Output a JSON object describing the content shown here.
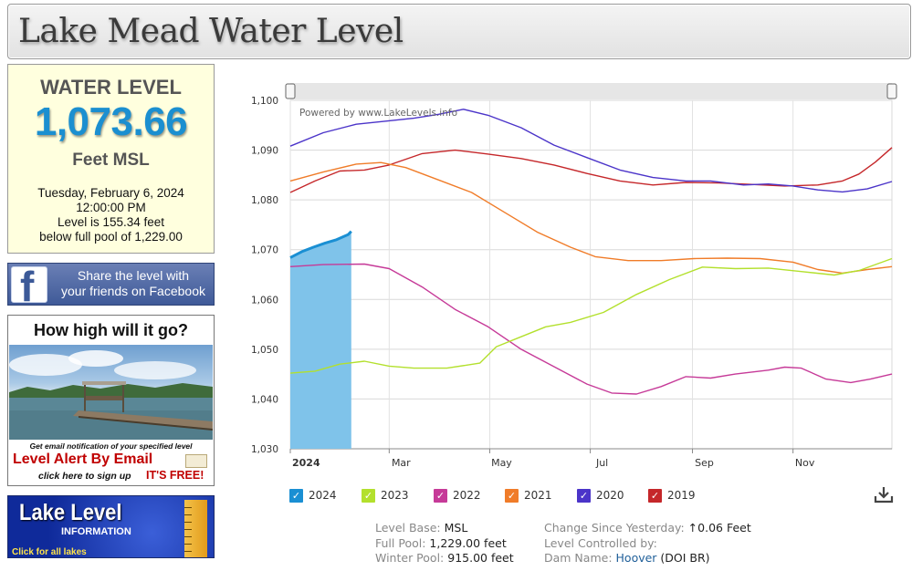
{
  "header": {
    "title": "Lake Mead Water Level"
  },
  "level_box": {
    "label": "WATER LEVEL",
    "value": "1,073.66",
    "unit": "Feet MSL",
    "date": "Tuesday, February 6, 2024",
    "time": "12:00:00 PM",
    "level_line": "Level is 155.34 feet",
    "below_line": "below full pool of 1,229.00"
  },
  "facebook_banner": {
    "line1": "Share the level with",
    "line2": "your friends on Facebook",
    "logo": "f"
  },
  "alert_banner": {
    "question": "How high will it go?",
    "small_text": "Get email notification of your specified level",
    "big_text": "Level Alert By Email",
    "signup_text": "click here to sign up",
    "free_text": "IT'S FREE!"
  },
  "lake_level_banner": {
    "title": "Lake Level",
    "subtitle": "INFORMATION",
    "link": "Click for all lakes"
  },
  "stats": {
    "level_base_label": "Level Base:",
    "level_base_value": "MSL",
    "full_pool_label": "Full Pool:",
    "full_pool_value": "1,229.00 feet",
    "winter_pool_label": "Winter Pool:",
    "winter_pool_value": "915.00 feet",
    "change_label": "Change Since Yesterday:",
    "change_arrow": "↑",
    "change_value": "0.06 Feet",
    "controlled_label": "Level Controlled by:",
    "dam_label": "Dam Name:",
    "dam_link": "Hoover",
    "dam_suffix": "(DOI BR)"
  },
  "chart_data": {
    "type": "line",
    "watermark": "Powered by www.LakeLevels.info",
    "x_tick_labels": [
      "2024",
      "Mar",
      "May",
      "Jul",
      "Sep",
      "Nov"
    ],
    "x_tick_days": [
      0,
      60,
      121,
      182,
      244,
      305
    ],
    "xlim_days": [
      0,
      365
    ],
    "ylim": [
      1030,
      1100
    ],
    "y_ticks": [
      1030,
      1040,
      1050,
      1060,
      1070,
      1080,
      1090,
      1100
    ],
    "y_tick_labels": [
      "1,030",
      "1,040",
      "1,050",
      "1,060",
      "1,070",
      "1,080",
      "1,090",
      "1,100"
    ],
    "grid": true,
    "legend_position": "bottom",
    "series": [
      {
        "name": "2024",
        "color": "#1a8fd3",
        "area": true,
        "points": [
          [
            0,
            1068.4
          ],
          [
            7,
            1069.6
          ],
          [
            14,
            1070.5
          ],
          [
            21,
            1071.3
          ],
          [
            28,
            1072.0
          ],
          [
            35,
            1073.0
          ],
          [
            37,
            1073.66
          ]
        ]
      },
      {
        "name": "2023",
        "color": "#b3e02d",
        "points": [
          [
            0,
            1045.2
          ],
          [
            15,
            1045.6
          ],
          [
            30,
            1047.0
          ],
          [
            45,
            1047.6
          ],
          [
            60,
            1046.6
          ],
          [
            75,
            1046.2
          ],
          [
            95,
            1046.2
          ],
          [
            115,
            1047.2
          ],
          [
            125,
            1050.5
          ],
          [
            140,
            1052.5
          ],
          [
            155,
            1054.5
          ],
          [
            170,
            1055.4
          ],
          [
            190,
            1057.4
          ],
          [
            210,
            1061.0
          ],
          [
            230,
            1064.0
          ],
          [
            250,
            1066.5
          ],
          [
            270,
            1066.2
          ],
          [
            290,
            1066.3
          ],
          [
            310,
            1065.6
          ],
          [
            330,
            1064.9
          ],
          [
            345,
            1065.8
          ],
          [
            365,
            1068.2
          ]
        ]
      },
      {
        "name": "2022",
        "color": "#c63a98",
        "points": [
          [
            0,
            1066.6
          ],
          [
            20,
            1067.0
          ],
          [
            45,
            1067.1
          ],
          [
            60,
            1066.2
          ],
          [
            80,
            1062.5
          ],
          [
            100,
            1058.0
          ],
          [
            120,
            1054.5
          ],
          [
            140,
            1050.0
          ],
          [
            160,
            1046.5
          ],
          [
            180,
            1043.0
          ],
          [
            195,
            1041.2
          ],
          [
            210,
            1041.0
          ],
          [
            225,
            1042.5
          ],
          [
            240,
            1044.5
          ],
          [
            255,
            1044.2
          ],
          [
            270,
            1045.0
          ],
          [
            290,
            1045.8
          ],
          [
            300,
            1046.4
          ],
          [
            310,
            1046.2
          ],
          [
            325,
            1044.0
          ],
          [
            340,
            1043.3
          ],
          [
            352,
            1044.0
          ],
          [
            365,
            1045.0
          ]
        ]
      },
      {
        "name": "2021",
        "color": "#f07c29",
        "points": [
          [
            0,
            1083.8
          ],
          [
            20,
            1085.6
          ],
          [
            40,
            1087.2
          ],
          [
            55,
            1087.5
          ],
          [
            70,
            1086.5
          ],
          [
            90,
            1084.0
          ],
          [
            110,
            1081.5
          ],
          [
            130,
            1077.5
          ],
          [
            150,
            1073.5
          ],
          [
            170,
            1070.5
          ],
          [
            185,
            1068.6
          ],
          [
            205,
            1067.8
          ],
          [
            225,
            1067.8
          ],
          [
            245,
            1068.2
          ],
          [
            265,
            1068.3
          ],
          [
            285,
            1068.2
          ],
          [
            305,
            1067.5
          ],
          [
            320,
            1066.0
          ],
          [
            335,
            1065.3
          ],
          [
            350,
            1066.0
          ],
          [
            365,
            1066.6
          ]
        ]
      },
      {
        "name": "2020",
        "color": "#4b34c9",
        "points": [
          [
            0,
            1090.8
          ],
          [
            20,
            1093.5
          ],
          [
            40,
            1095.2
          ],
          [
            60,
            1095.9
          ],
          [
            75,
            1096.4
          ],
          [
            90,
            1097.2
          ],
          [
            105,
            1098.2
          ],
          [
            120,
            1097.0
          ],
          [
            140,
            1094.5
          ],
          [
            160,
            1091.0
          ],
          [
            180,
            1088.5
          ],
          [
            200,
            1086.0
          ],
          [
            220,
            1084.5
          ],
          [
            240,
            1083.8
          ],
          [
            255,
            1083.8
          ],
          [
            275,
            1083.0
          ],
          [
            290,
            1083.2
          ],
          [
            305,
            1082.8
          ],
          [
            320,
            1082.0
          ],
          [
            335,
            1081.6
          ],
          [
            350,
            1082.2
          ],
          [
            365,
            1083.7
          ]
        ]
      },
      {
        "name": "2019",
        "color": "#c5272a",
        "points": [
          [
            0,
            1081.5
          ],
          [
            15,
            1083.8
          ],
          [
            30,
            1085.8
          ],
          [
            45,
            1086.0
          ],
          [
            60,
            1087.0
          ],
          [
            80,
            1089.3
          ],
          [
            100,
            1090.0
          ],
          [
            120,
            1089.2
          ],
          [
            140,
            1088.3
          ],
          [
            160,
            1087.0
          ],
          [
            180,
            1085.3
          ],
          [
            200,
            1083.8
          ],
          [
            220,
            1083.0
          ],
          [
            240,
            1083.5
          ],
          [
            260,
            1083.4
          ],
          [
            280,
            1083.1
          ],
          [
            300,
            1082.8
          ],
          [
            320,
            1083.0
          ],
          [
            335,
            1083.8
          ],
          [
            345,
            1085.2
          ],
          [
            355,
            1087.6
          ],
          [
            365,
            1090.5
          ]
        ]
      }
    ]
  },
  "icons": {
    "download": "download-icon",
    "checkbox": "checkmark-icon"
  }
}
